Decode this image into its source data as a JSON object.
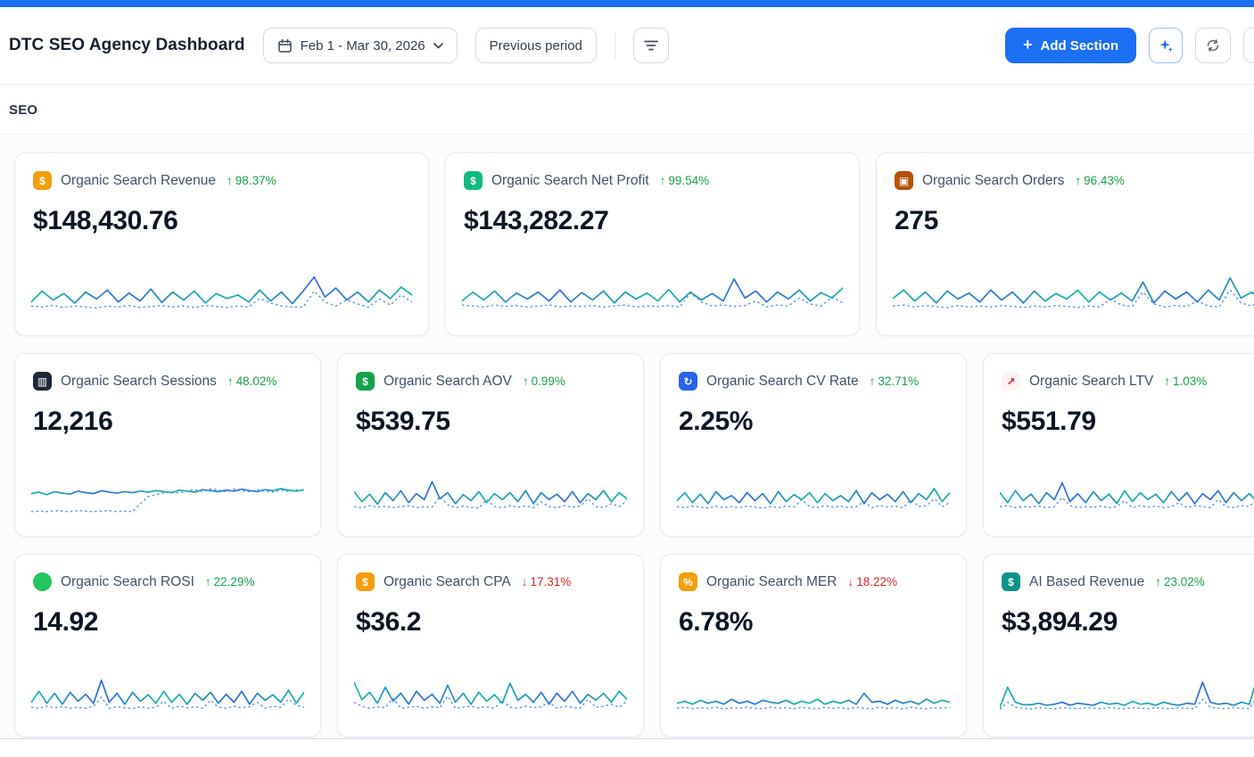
{
  "app": {
    "title": "DTC SEO Agency Dashboard",
    "date_range": "Feb 1 - Mar 30, 2026",
    "compare_label": "Previous period",
    "add_section_label": "Add Section"
  },
  "section": {
    "title": "SEO"
  },
  "colors": {
    "accent_blue": "#1b6ff2",
    "delta_up_green": "#16a34a",
    "delta_down_red": "#dc2626",
    "spark_teal": "#14b8a6",
    "spark_blue": "#2f6bdf"
  },
  "cards": [
    {
      "id": "organic-search-revenue",
      "row": 0,
      "icon": {
        "name": "money-bag-icon",
        "glyph": "$",
        "bg": "#f59e0b",
        "fg": "#ffffff"
      },
      "label": "Organic Search Revenue",
      "arrow": "↑",
      "direction": "up",
      "delta": "98.37%",
      "value": "$148,430.76",
      "spark": {
        "current": [
          38,
          60,
          42,
          55,
          36,
          58,
          44,
          62,
          38,
          56,
          40,
          64,
          37,
          58,
          42,
          60,
          36,
          55,
          45,
          52,
          38,
          62,
          40,
          58,
          35,
          60,
          88,
          48,
          66,
          42,
          58,
          38,
          62,
          45,
          68,
          52
        ],
        "previous": [
          30,
          28,
          31,
          27,
          30,
          28,
          26,
          30,
          28,
          31,
          27,
          29,
          31,
          28,
          30,
          27,
          31,
          29,
          27,
          30,
          28,
          45,
          36,
          30,
          28,
          28,
          60,
          38,
          30,
          42,
          34,
          28,
          44,
          32,
          52,
          38
        ]
      }
    },
    {
      "id": "organic-search-net-profit",
      "row": 0,
      "icon": {
        "name": "money-with-wings-icon",
        "glyph": "$",
        "bg": "#10b981",
        "fg": "#ffffff"
      },
      "label": "Organic Search Net Profit",
      "arrow": "↑",
      "direction": "up",
      "delta": "99.54%",
      "value": "$143,282.27",
      "spark": {
        "current": [
          40,
          58,
          42,
          60,
          38,
          56,
          44,
          58,
          40,
          62,
          38,
          57,
          42,
          60,
          36,
          58,
          44,
          56,
          40,
          63,
          38,
          58,
          42,
          55,
          40,
          84,
          46,
          60,
          38,
          58,
          44,
          62,
          40,
          57,
          46,
          66
        ],
        "previous": [
          32,
          30,
          28,
          32,
          29,
          31,
          28,
          30,
          32,
          28,
          30,
          29,
          31,
          28,
          30,
          32,
          28,
          30,
          29,
          31,
          28,
          56,
          38,
          30,
          32,
          29,
          31,
          40,
          28,
          32,
          30,
          46,
          34,
          30,
          48,
          36
        ]
      }
    },
    {
      "id": "organic-search-orders",
      "row": 0,
      "icon": {
        "name": "package-icon",
        "glyph": "▣",
        "bg": "#b45309",
        "fg": "#ffffff"
      },
      "label": "Organic Search Orders",
      "arrow": "↑",
      "direction": "up",
      "delta": "96.43%",
      "value": "275",
      "spark": {
        "current": [
          45,
          62,
          40,
          58,
          36,
          60,
          44,
          56,
          38,
          62,
          42,
          58,
          36,
          60,
          40,
          55,
          44,
          62,
          38,
          58,
          42,
          56,
          40,
          78,
          36,
          60,
          44,
          58,
          38,
          62,
          42,
          86,
          46,
          58,
          40,
          64
        ],
        "previous": [
          30,
          32,
          28,
          31,
          29,
          27,
          31,
          28,
          30,
          28,
          31,
          29,
          27,
          30,
          28,
          31,
          29,
          27,
          30,
          28,
          44,
          32,
          29,
          58,
          34,
          28,
          31,
          29,
          40,
          30,
          28,
          62,
          36,
          30,
          46,
          34
        ]
      }
    },
    {
      "id": "organic-search-sessions",
      "row": 1,
      "icon": {
        "name": "desktop-computer-icon",
        "glyph": "▥",
        "bg": "#1f2937",
        "fg": "#ffffff"
      },
      "label": "Organic Search Sessions",
      "arrow": "↑",
      "direction": "up",
      "delta": "48.02%",
      "value": "12,216",
      "spark": {
        "current": [
          56,
          59,
          54,
          60,
          57,
          55,
          61,
          58,
          56,
          62,
          59,
          57,
          60,
          58,
          61,
          59,
          62,
          60,
          58,
          63,
          61,
          59,
          64,
          62,
          60,
          63,
          61,
          65,
          62,
          60,
          64,
          62,
          66,
          63,
          61,
          64
        ],
        "previous": [
          20,
          21,
          20,
          22,
          21,
          20,
          22,
          21,
          20,
          21,
          22,
          20,
          21,
          20,
          36,
          50,
          54,
          58,
          60,
          57,
          62,
          64,
          60,
          66,
          63,
          60,
          65,
          62,
          60,
          64,
          61,
          59,
          63,
          60,
          64,
          61
        ]
      }
    },
    {
      "id": "organic-search-aov",
      "row": 1,
      "icon": {
        "name": "dollar-banknote-icon",
        "glyph": "$",
        "bg": "#16a34a",
        "fg": "#ffffff"
      },
      "label": "Organic Search AOV",
      "arrow": "↑",
      "direction": "up",
      "delta": "0.99%",
      "value": "$539.75",
      "spark": {
        "current": [
          60,
          40,
          55,
          35,
          58,
          42,
          62,
          38,
          56,
          44,
          80,
          46,
          58,
          36,
          54,
          42,
          60,
          38,
          56,
          44,
          58,
          40,
          62,
          36,
          58,
          44,
          55,
          40,
          60,
          38,
          56,
          44,
          62,
          40,
          58,
          46
        ],
        "previous": [
          30,
          28,
          32,
          29,
          31,
          28,
          30,
          32,
          28,
          30,
          29,
          50,
          34,
          28,
          31,
          29,
          27,
          44,
          30,
          28,
          32,
          29,
          31,
          28,
          40,
          30,
          28,
          32,
          29,
          31,
          46,
          30,
          28,
          36,
          30,
          42
        ]
      }
    },
    {
      "id": "organic-search-cv-rate",
      "row": 1,
      "icon": {
        "name": "arrows-cycle-icon",
        "glyph": "↻",
        "bg": "#2563eb",
        "fg": "#ffffff"
      },
      "label": "Organic Search CV Rate",
      "arrow": "↑",
      "direction": "up",
      "delta": "32.71%",
      "value": "2.25%",
      "spark": {
        "current": [
          42,
          58,
          38,
          55,
          36,
          60,
          44,
          52,
          38,
          58,
          42,
          56,
          36,
          60,
          40,
          54,
          44,
          58,
          38,
          56,
          42,
          52,
          40,
          62,
          36,
          58,
          44,
          55,
          40,
          60,
          38,
          56,
          44,
          66,
          40,
          58
        ],
        "previous": [
          30,
          28,
          31,
          29,
          27,
          31,
          28,
          30,
          28,
          31,
          29,
          27,
          30,
          28,
          31,
          29,
          44,
          30,
          28,
          32,
          29,
          31,
          28,
          30,
          40,
          28,
          32,
          29,
          31,
          28,
          44,
          30,
          32,
          46,
          30,
          38
        ]
      }
    },
    {
      "id": "organic-search-ltv",
      "row": 1,
      "icon": {
        "name": "chart-increasing-icon",
        "glyph": "↗",
        "bg": "#fef2f2",
        "fg": "#dc2626"
      },
      "label": "Organic Search LTV",
      "arrow": "↑",
      "direction": "up",
      "delta": "1.03%",
      "value": "$551.79",
      "spark": {
        "current": [
          58,
          38,
          62,
          42,
          55,
          36,
          58,
          44,
          78,
          40,
          56,
          38,
          60,
          42,
          55,
          36,
          62,
          40,
          58,
          44,
          55,
          38,
          60,
          42,
          58,
          36,
          56,
          44,
          62,
          38,
          58,
          42,
          56,
          40,
          64,
          46
        ],
        "previous": [
          30,
          32,
          28,
          30,
          29,
          31,
          28,
          30,
          48,
          32,
          28,
          30,
          29,
          31,
          28,
          30,
          42,
          28,
          32,
          29,
          31,
          28,
          30,
          38,
          28,
          32,
          30,
          28,
          44,
          30,
          28,
          32,
          30,
          46,
          32,
          40
        ]
      }
    },
    {
      "id": "organic-search-rosi",
      "row": 2,
      "icon": {
        "name": "green-circle-icon",
        "glyph": "",
        "bg": "#22c55e",
        "fg": "#ffffff",
        "shape": "circle"
      },
      "label": "Organic Search ROSI",
      "arrow": "↑",
      "direction": "up",
      "delta": "22.29%",
      "value": "14.92",
      "spark": {
        "current": [
          40,
          62,
          38,
          58,
          36,
          60,
          42,
          56,
          38,
          84,
          40,
          58,
          36,
          60,
          42,
          55,
          38,
          62,
          40,
          56,
          36,
          58,
          44,
          60,
          38,
          56,
          40,
          62,
          36,
          58,
          44,
          55,
          40,
          64,
          38,
          60
        ],
        "previous": [
          30,
          28,
          32,
          29,
          31,
          28,
          30,
          28,
          32,
          50,
          28,
          31,
          29,
          27,
          31,
          28,
          30,
          42,
          28,
          32,
          29,
          31,
          28,
          44,
          30,
          28,
          32,
          29,
          31,
          40,
          28,
          32,
          30,
          46,
          34,
          30
        ]
      }
    },
    {
      "id": "organic-search-cpa",
      "row": 2,
      "icon": {
        "name": "construction-worker-icon",
        "glyph": "$",
        "bg": "#f59e0b",
        "fg": "#ffffff"
      },
      "label": "Organic Search CPA",
      "arrow": "↓",
      "direction": "down",
      "delta": "17.31%",
      "value": "$36.2",
      "spark": {
        "current": [
          80,
          45,
          60,
          38,
          70,
          42,
          58,
          36,
          62,
          44,
          56,
          38,
          74,
          40,
          58,
          36,
          60,
          42,
          55,
          38,
          78,
          44,
          56,
          40,
          60,
          36,
          58,
          42,
          62,
          38,
          56,
          44,
          58,
          40,
          62,
          46
        ],
        "previous": [
          40,
          32,
          28,
          31,
          29,
          48,
          28,
          30,
          32,
          28,
          31,
          29,
          52,
          28,
          30,
          32,
          29,
          31,
          28,
          44,
          30,
          28,
          32,
          29,
          31,
          40,
          28,
          32,
          30,
          28,
          46,
          30,
          32,
          36,
          30,
          42
        ]
      }
    },
    {
      "id": "organic-search-mer",
      "row": 2,
      "icon": {
        "name": "construction-worker-icon",
        "glyph": "%",
        "bg": "#f59e0b",
        "fg": "#ffffff"
      },
      "label": "Organic Search MER",
      "arrow": "↓",
      "direction": "down",
      "delta": "18.22%",
      "value": "6.78%",
      "spark": {
        "current": [
          38,
          42,
          36,
          44,
          38,
          42,
          36,
          46,
          38,
          42,
          36,
          44,
          40,
          38,
          44,
          36,
          42,
          38,
          46,
          36,
          42,
          38,
          44,
          36,
          58,
          40,
          42,
          36,
          44,
          38,
          42,
          36,
          46,
          38,
          44,
          40
        ],
        "previous": [
          28,
          30,
          27,
          29,
          28,
          30,
          27,
          29,
          28,
          30,
          28,
          27,
          30,
          28,
          29,
          27,
          30,
          28,
          27,
          30,
          28,
          29,
          27,
          30,
          28,
          27,
          30,
          28,
          29,
          27,
          30,
          28,
          27,
          29,
          28,
          30
        ]
      }
    },
    {
      "id": "ai-based-revenue",
      "row": 2,
      "icon": {
        "name": "birthday-cake-icon",
        "glyph": "$",
        "bg": "#0d9488",
        "fg": "#ffffff"
      },
      "label": "AI Based Revenue",
      "arrow": "↑",
      "direction": "up",
      "delta": "23.02%",
      "value": "$3,894.29",
      "spark": {
        "current": [
          30,
          70,
          40,
          35,
          35,
          38,
          34,
          36,
          40,
          34,
          38,
          36,
          34,
          40,
          36,
          38,
          34,
          42,
          36,
          38,
          34,
          40,
          36,
          34,
          38,
          36,
          80,
          40,
          36,
          38,
          34,
          40,
          36,
          88,
          38,
          42
        ],
        "previous": [
          26,
          40,
          30,
          28,
          27,
          29,
          28,
          27,
          29,
          28,
          27,
          29,
          28,
          27,
          29,
          28,
          27,
          29,
          28,
          27,
          29,
          28,
          27,
          29,
          28,
          27,
          46,
          30,
          28,
          27,
          29,
          28,
          27,
          52,
          30,
          28
        ]
      }
    }
  ]
}
